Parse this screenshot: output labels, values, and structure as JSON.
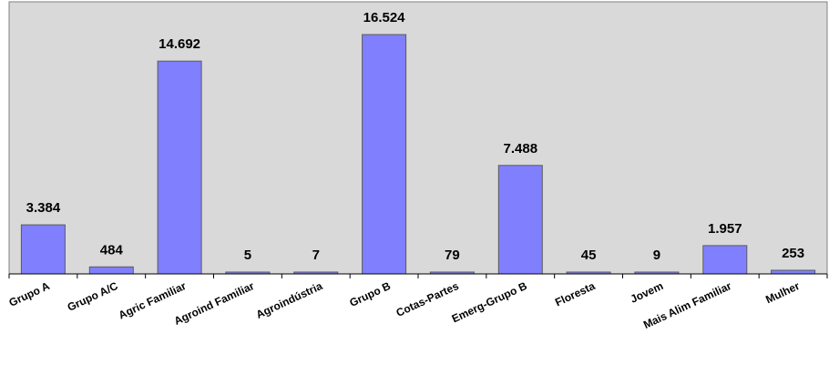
{
  "chart_data": {
    "type": "bar",
    "categories": [
      "Grupo A",
      "Grupo A/C",
      "Agric Familiar",
      "Agroind Familiar",
      "Agroindústria",
      "Grupo B",
      "Cotas-Partes",
      "Emerg-Grupo B",
      "Floresta",
      "Jovem",
      "Mais Alim Familiar",
      "Mulher"
    ],
    "values": [
      3384,
      484,
      14692,
      5,
      7,
      16524,
      79,
      7488,
      45,
      9,
      1957,
      253
    ],
    "value_labels": [
      "3.384",
      "484",
      "14.692",
      "5",
      "7",
      "16.524",
      "79",
      "7.488",
      "45",
      "9",
      "1.957",
      "253"
    ],
    "title": "",
    "xlabel": "",
    "ylabel": "",
    "ylim": [
      0,
      18000
    ],
    "grid": false,
    "legend": "none",
    "colors": {
      "bar": "#8080ff",
      "plot_background": "#d9d9d9"
    }
  }
}
